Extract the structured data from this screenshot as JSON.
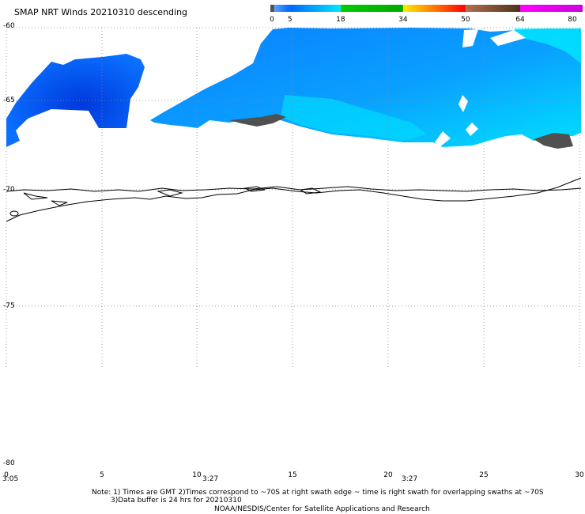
{
  "title": "SMAP NRT Winds  20210310 descending",
  "colorbar": {
    "labels": [
      "0",
      "5",
      "18",
      "34",
      "50",
      "64",
      "80"
    ],
    "segments": [
      {
        "from": 0,
        "to": 1,
        "color": "#505050"
      },
      {
        "from": 1,
        "to": 5,
        "color": "#33aaff"
      },
      {
        "from": 5,
        "to": 18,
        "color": "#00bbff"
      },
      {
        "from": 18,
        "to": 34,
        "color": "#00bb00"
      },
      {
        "from": 34,
        "to": 50,
        "color": "#ff8800"
      },
      {
        "from": 50,
        "to": 64,
        "color": "#8b5a2b"
      },
      {
        "from": 64,
        "to": 80,
        "color": "#dd00dd"
      }
    ]
  },
  "latitude_labels": [
    "-60",
    "-65",
    "-70",
    "-75",
    "-80"
  ],
  "longitude_labels": [
    "0",
    "5",
    "10",
    "15",
    "20",
    "25",
    "30"
  ],
  "time_labels": [
    "3:05",
    "3:27",
    "3:27"
  ],
  "notes": {
    "line1": "Note: 1) Times are GMT 2)Times correspond to ~70S at right swath edge ~ time is right swath for overlapping swaths at ~70S",
    "line2": "3)Data buffer is 24 hrs for 20210310",
    "line3": "NOAA/NESDIS/Center for Satellite Applications and Research"
  },
  "colors": {
    "wind_low": "#0055ee",
    "wind_mid": "#0a8cff",
    "wind_high": "#00e6ff",
    "no_data_gray": "#505050",
    "coastline": "#000000"
  }
}
